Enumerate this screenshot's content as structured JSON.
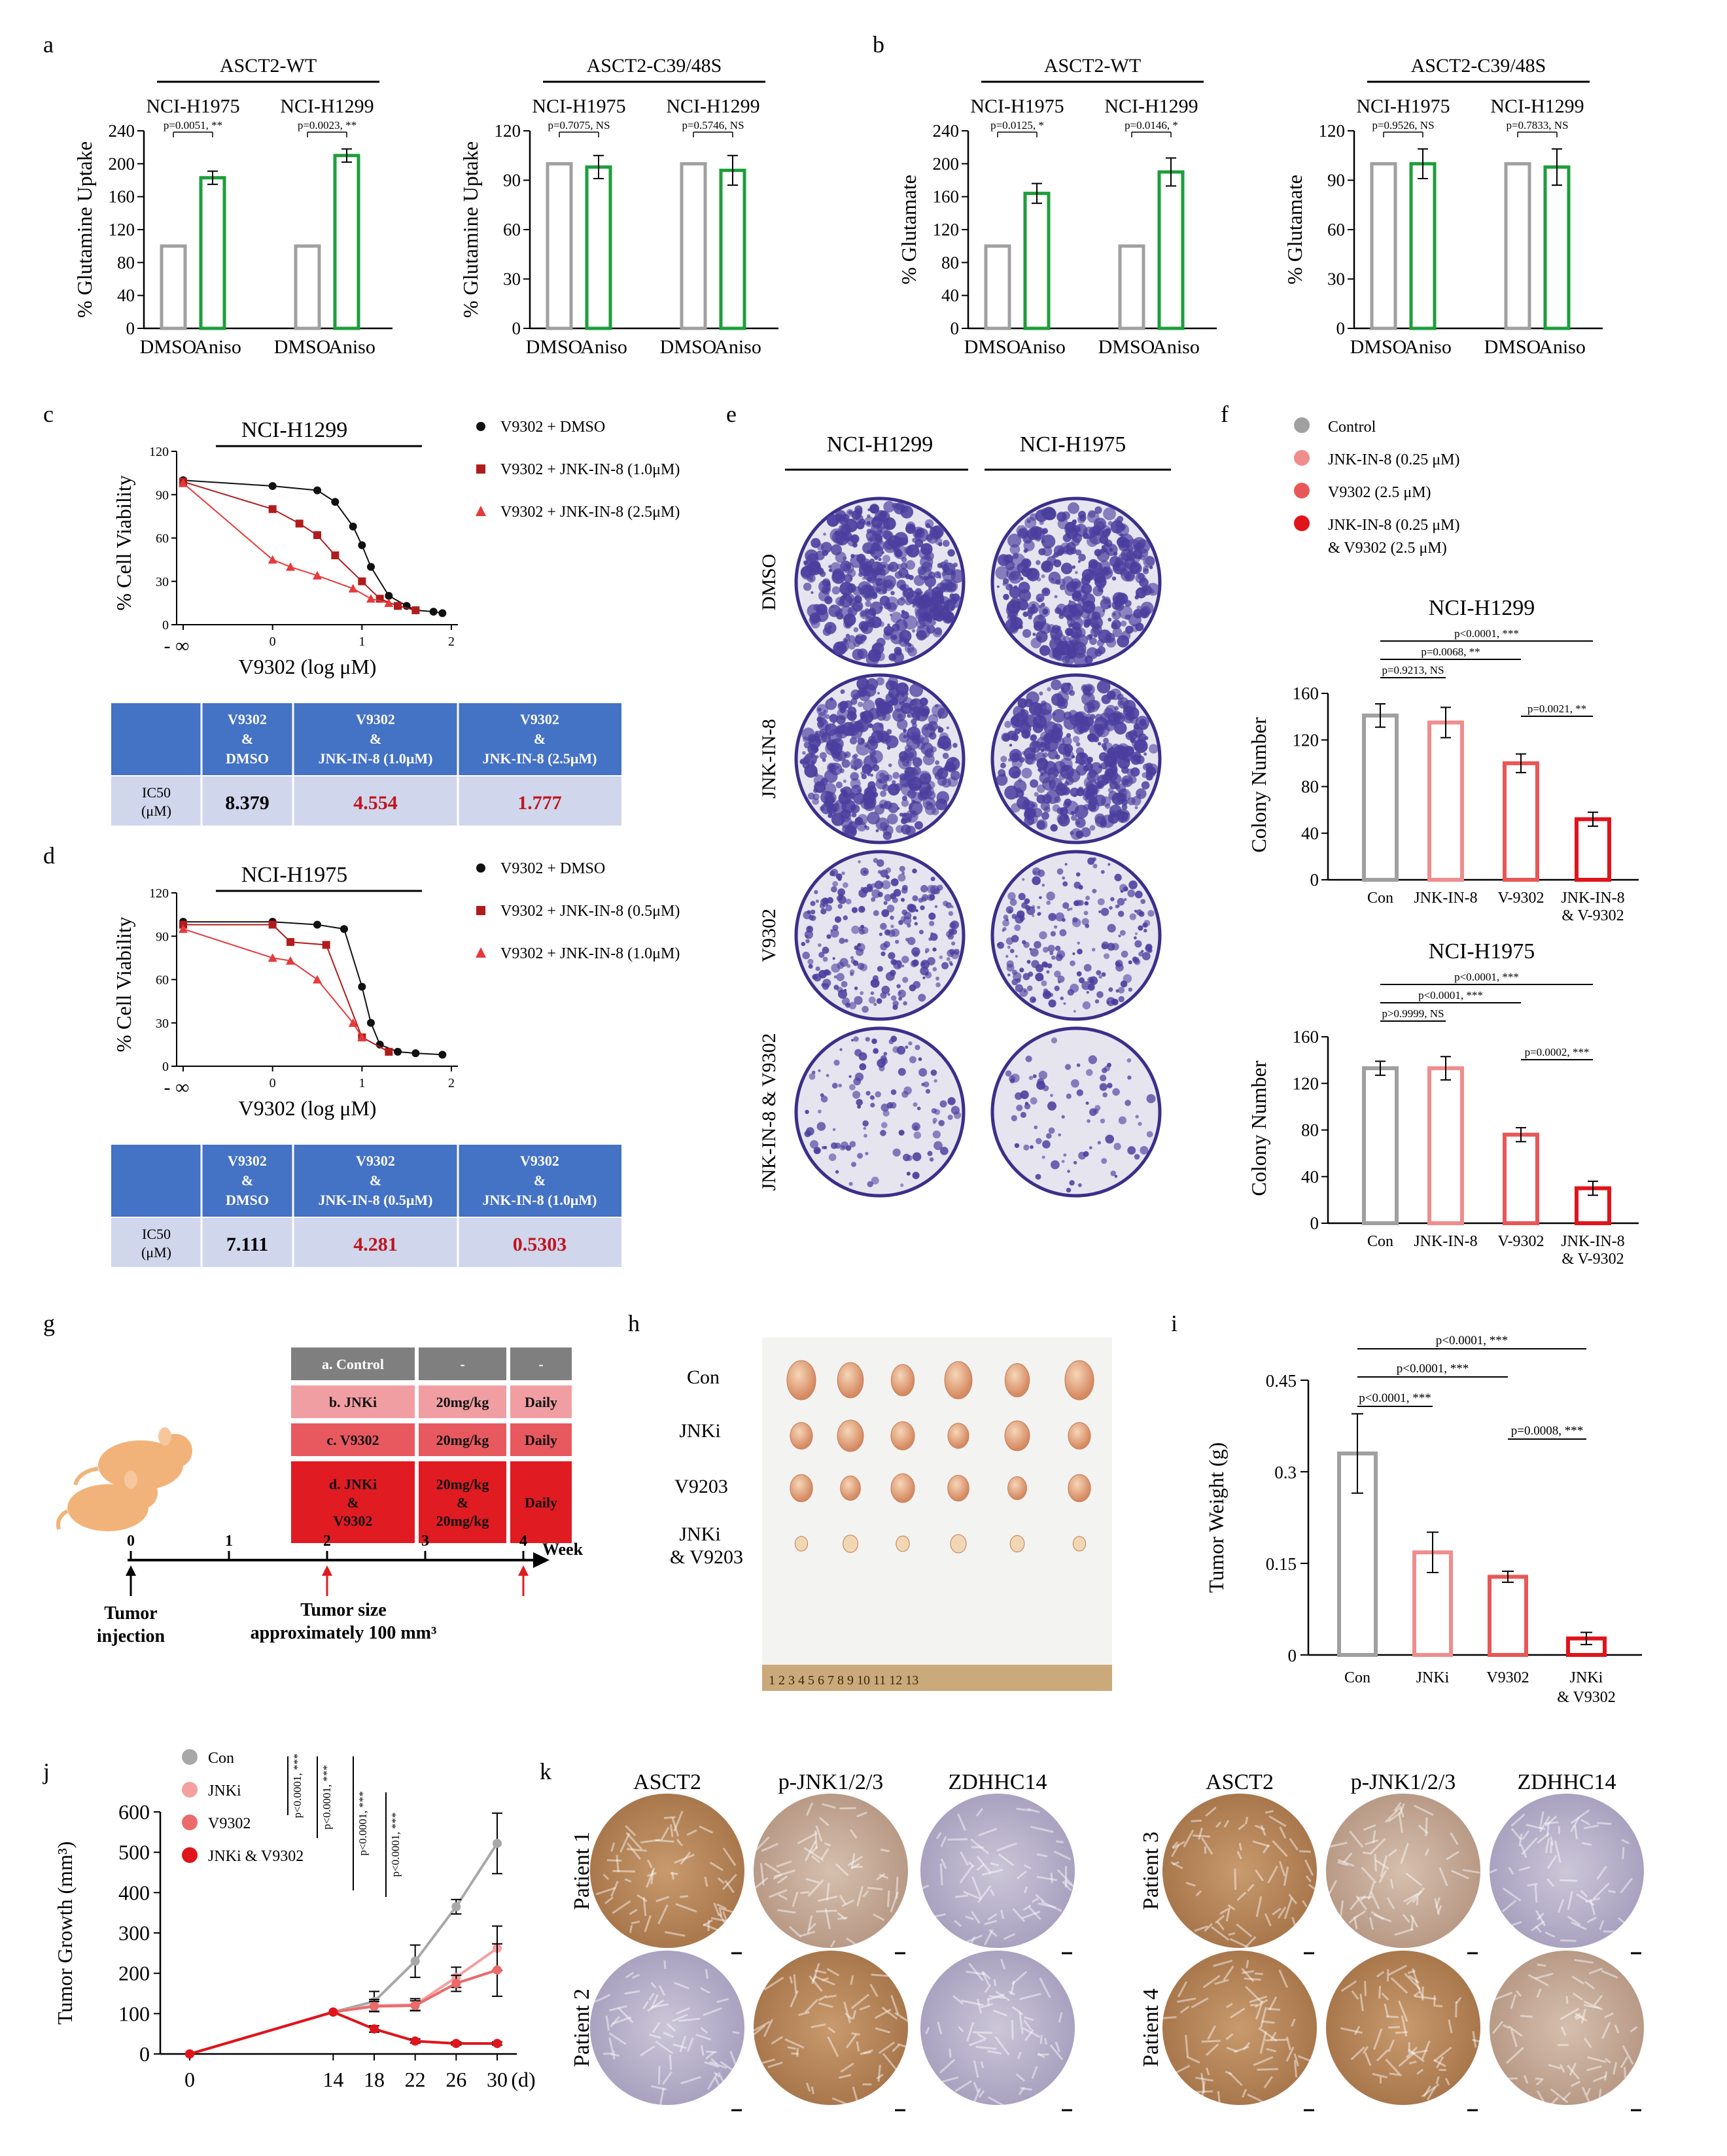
{
  "panels": {
    "a": {
      "letter": "a",
      "blocks": [
        {
          "group": "ASCT2-WT",
          "ylabel": "% Glutamine Uptake",
          "ylim": [
            0,
            240
          ],
          "ticks": [
            "0",
            "40",
            "80",
            "120",
            "160",
            "200",
            "240"
          ],
          "lines": [
            {
              "name": "NCI-H1975",
              "p": "p=0.0051, **",
              "values": [
                100,
                183
              ],
              "err": [
                0,
                8
              ]
            },
            {
              "name": "NCI-H1299",
              "p": "p=0.0023, **",
              "values": [
                100,
                210
              ],
              "err": [
                0,
                8
              ]
            }
          ],
          "xlabels": [
            "DMSO",
            "Aniso",
            "DMSO",
            "Aniso"
          ]
        },
        {
          "group": "ASCT2-C39/48S",
          "ylabel": "% Glutamine Uptake",
          "ylim": [
            0,
            120
          ],
          "ticks": [
            "0",
            "30",
            "60",
            "90",
            "120"
          ],
          "lines": [
            {
              "name": "NCI-H1975",
              "p": "p=0.7075, NS",
              "values": [
                100,
                98
              ],
              "err": [
                0,
                7
              ]
            },
            {
              "name": "NCI-H1299",
              "p": "p=0.5746, NS",
              "values": [
                100,
                96
              ],
              "err": [
                0,
                9
              ]
            }
          ],
          "xlabels": [
            "DMSO",
            "Aniso",
            "DMSO",
            "Aniso"
          ]
        }
      ]
    },
    "b": {
      "letter": "b",
      "blocks": [
        {
          "group": "ASCT2-WT",
          "ylabel": "% Glutamate",
          "ylim": [
            0,
            240
          ],
          "ticks": [
            "0",
            "40",
            "80",
            "120",
            "160",
            "200",
            "240"
          ],
          "lines": [
            {
              "name": "NCI-H1975",
              "p": "p=0.0125, *",
              "values": [
                100,
                164
              ],
              "err": [
                0,
                12
              ]
            },
            {
              "name": "NCI-H1299",
              "p": "p=0.0146, *",
              "values": [
                100,
                190
              ],
              "err": [
                0,
                17
              ]
            }
          ],
          "xlabels": [
            "DMSO",
            "Aniso",
            "DMSO",
            "Aniso"
          ]
        },
        {
          "group": "ASCT2-C39/48S",
          "ylabel": "% Glutamate",
          "ylim": [
            0,
            120
          ],
          "ticks": [
            "0",
            "30",
            "60",
            "90",
            "120"
          ],
          "lines": [
            {
              "name": "NCI-H1975",
              "p": "p=0.9526, NS",
              "values": [
                100,
                100
              ],
              "err": [
                0,
                9
              ]
            },
            {
              "name": "NCI-H1299",
              "p": "p=0.7833, NS",
              "values": [
                100,
                98
              ],
              "err": [
                0,
                11
              ]
            }
          ],
          "xlabels": [
            "DMSO",
            "Aniso",
            "DMSO",
            "Aniso"
          ]
        }
      ]
    },
    "c": {
      "letter": "c",
      "line": "NCI-H1299",
      "ylabel": "% Cell Viability",
      "xlabel": "V9302 (log   μM)",
      "yticks": [
        "0",
        "30",
        "60",
        "90",
        "120"
      ],
      "xticks": [
        "- ∞",
        "0",
        "1",
        "2"
      ],
      "legend": [
        "V9302 + DMSO",
        "V9302 + JNK-IN-8 (1.0μM)",
        "V9302 + JNK-IN-8 (2.5μM)"
      ],
      "table": {
        "headers": [
          "V9302\n&\nDMSO",
          "V9302\n&\nJNK-IN-8 (1.0μM)",
          "V9302\n&\nJNK-IN-8  (2.5μM)"
        ],
        "rowlabel": "IC50\n(μM)",
        "values": [
          "8.379",
          "4.554",
          "1.777"
        ]
      }
    },
    "d": {
      "letter": "d",
      "line": "NCI-H1975",
      "ylabel": "% Cell Viability",
      "xlabel": "V9302 (log   μM)",
      "yticks": [
        "0",
        "30",
        "60",
        "90",
        "120"
      ],
      "xticks": [
        "- ∞",
        "0",
        "1",
        "2"
      ],
      "legend": [
        "V9302 + DMSO",
        "V9302 + JNK-IN-8 (0.5μM)",
        "V9302 + JNK-IN-8 (1.0μM)"
      ],
      "table": {
        "headers": [
          "V9302\n&\nDMSO",
          "V9302\n&\nJNK-IN-8 (0.5μM)",
          "V9302\n&\nJNK-IN-8  (1.0μM)"
        ],
        "rowlabel": "IC50\n(μM)",
        "values": [
          "7.111",
          "4.281",
          "0.5303"
        ]
      }
    },
    "e": {
      "letter": "e",
      "columns": [
        "NCI-H1299",
        "NCI-H1975"
      ],
      "rows": [
        "DMSO",
        "JNK-IN-8",
        "V9302",
        "JNK-IN-8 & V9302"
      ],
      "density": [
        0.9,
        0.85,
        0.5,
        0.15,
        0.85,
        0.85,
        0.4,
        0.06
      ]
    },
    "f": {
      "letter": "f",
      "legend": [
        "Control",
        "JNK-IN-8 (0.25 μM)",
        "V9302 (2.5 μM)",
        "JNK-IN-8 (0.25 μM)",
        "&  V9302 (2.5 μM)"
      ],
      "ylabel": "Colony Number",
      "xlabels": [
        "Con",
        "JNK-IN-8",
        "V-9302",
        "JNK-IN-8",
        "& V-9302"
      ],
      "charts": [
        {
          "title": "NCI-H1299",
          "values": [
            141,
            135,
            100,
            52
          ],
          "err": [
            10,
            13,
            8,
            6
          ],
          "ticks": [
            "0",
            "40",
            "80",
            "120",
            "160"
          ],
          "brackets": [
            "p<0.0001, ***",
            "p=0.0068, **",
            "p=0.9213, NS",
            "p=0.0021, **"
          ]
        },
        {
          "title": "NCI-H1975",
          "values": [
            133,
            133,
            76,
            30
          ],
          "err": [
            6,
            10,
            6,
            6
          ],
          "ticks": [
            "0",
            "40",
            "80",
            "120",
            "160"
          ],
          "brackets": [
            "p<0.0001, ***",
            "p<0.0001, ***",
            "p>0.9999, NS",
            "p=0.0002, ***"
          ]
        }
      ]
    },
    "g": {
      "letter": "g",
      "table": [
        [
          "a. Control",
          "-",
          "-"
        ],
        [
          "b. JNKi",
          "20mg/kg",
          "Daily"
        ],
        [
          "c. V9302",
          "20mg/kg",
          "Daily"
        ],
        [
          "d. JNKi",
          "20mg/kg",
          "Daily"
        ],
        [
          "&",
          "&",
          ""
        ],
        [
          "V9302",
          "20mg/kg",
          ""
        ]
      ],
      "weeks": [
        "0",
        "1",
        "2",
        "3",
        "4"
      ],
      "week_label": "Week",
      "left_note": [
        "Tumor",
        "injection"
      ],
      "mid_note": [
        "Tumor size",
        "approximately 100 mm³"
      ]
    },
    "h": {
      "letter": "h",
      "rows": [
        "Con",
        "JNKi",
        "V9203",
        "JNKi",
        "& V9203"
      ],
      "ruler": "1  2  3  4  5  6  7  8  9  10  11  12  13"
    },
    "i": {
      "letter": "i",
      "ylabel": "Tumor Weight (g)",
      "ticks": [
        "0",
        "0.15",
        "0.3",
        "0.45"
      ],
      "xlabels": [
        "Con",
        "JNKi",
        "V9302",
        "JNKi",
        "& V9302"
      ],
      "values": [
        0.33,
        0.168,
        0.128,
        0.027
      ],
      "err": [
        0.065,
        0.033,
        0.009,
        0.01
      ],
      "brackets": [
        "p<0.0001, ***",
        "p<0.0001, ***",
        "p<0.0001, ***",
        "p=0.0008, ***"
      ]
    },
    "j": {
      "letter": "j",
      "ylabel": "Tumor Growth (mm³)",
      "xunit": "(d)",
      "xticks": [
        "0",
        "14",
        "18",
        "22",
        "26",
        "30"
      ],
      "yticks": [
        "0",
        "100",
        "200",
        "300",
        "400",
        "500",
        "600"
      ],
      "legend": [
        "Con",
        "JNKi",
        "V9302",
        "JNKi & V9302"
      ],
      "pvals": [
        "p<0.0001, ***",
        "p<0.0001, ***",
        "p<0.0001, ***",
        "p<0.0001, ***"
      ]
    },
    "k": {
      "letter": "k",
      "columns": [
        "ASCT2",
        "p-JNK1/2/3",
        "ZDHHC14",
        "ASCT2",
        "p-JNK1/2/3",
        "ZDHHC14"
      ],
      "patients": [
        "Patient 1",
        "Patient 2",
        "Patient 3",
        "Patient 4"
      ]
    }
  },
  "chart_data": [
    {
      "type": "bar",
      "panel": "a-1",
      "title": "ASCT2-WT",
      "ylabel": "% Glutamine Uptake",
      "ylim": [
        0,
        240
      ],
      "categories": [
        "NCI-H1975 DMSO",
        "NCI-H1975 Aniso",
        "NCI-H1299 DMSO",
        "NCI-H1299 Aniso"
      ],
      "values": [
        100,
        183,
        100,
        210
      ]
    },
    {
      "type": "bar",
      "panel": "a-2",
      "title": "ASCT2-C39/48S",
      "ylabel": "% Glutamine Uptake",
      "ylim": [
        0,
        120
      ],
      "categories": [
        "NCI-H1975 DMSO",
        "NCI-H1975 Aniso",
        "NCI-H1299 DMSO",
        "NCI-H1299 Aniso"
      ],
      "values": [
        100,
        98,
        100,
        96
      ]
    },
    {
      "type": "bar",
      "panel": "b-1",
      "title": "ASCT2-WT",
      "ylabel": "% Glutamate",
      "ylim": [
        0,
        240
      ],
      "categories": [
        "NCI-H1975 DMSO",
        "NCI-H1975 Aniso",
        "NCI-H1299 DMSO",
        "NCI-H1299 Aniso"
      ],
      "values": [
        100,
        164,
        100,
        190
      ]
    },
    {
      "type": "bar",
      "panel": "b-2",
      "title": "ASCT2-C39/48S",
      "ylabel": "% Glutamate",
      "ylim": [
        0,
        120
      ],
      "categories": [
        "NCI-H1975 DMSO",
        "NCI-H1975 Aniso",
        "NCI-H1299 DMSO",
        "NCI-H1299 Aniso"
      ],
      "values": [
        100,
        100,
        100,
        98
      ]
    },
    {
      "type": "scatter",
      "panel": "c",
      "title": "NCI-H1299",
      "xlabel": "V9302 (log μM)",
      "ylabel": "% Cell Viability",
      "xlim": [
        -1,
        2
      ],
      "ylim": [
        0,
        120
      ],
      "series": [
        {
          "name": "V9302 + DMSO",
          "x": [
            -1,
            0,
            0.5,
            0.7,
            0.9,
            1.0,
            1.1,
            1.3,
            1.5,
            1.6,
            1.8,
            1.9
          ],
          "y": [
            100,
            96,
            93,
            85,
            68,
            55,
            40,
            20,
            13,
            10,
            9,
            8
          ]
        },
        {
          "name": "V9302 + JNK-IN-8 (1.0μM)",
          "x": [
            -1,
            0,
            0.3,
            0.5,
            0.7,
            1.0,
            1.2,
            1.4,
            1.6
          ],
          "y": [
            99,
            80,
            70,
            62,
            48,
            30,
            18,
            13,
            10
          ]
        },
        {
          "name": "V9302 + JNK-IN-8 (2.5μM)",
          "x": [
            -1,
            0,
            0.2,
            0.5,
            0.9,
            1.1,
            1.3
          ],
          "y": [
            98,
            45,
            40,
            34,
            25,
            18,
            15
          ]
        }
      ]
    },
    {
      "type": "scatter",
      "panel": "d",
      "title": "NCI-H1975",
      "xlabel": "V9302 (log μM)",
      "ylabel": "% Cell Viability",
      "xlim": [
        -1,
        2
      ],
      "ylim": [
        0,
        120
      ],
      "series": [
        {
          "name": "V9302 + DMSO",
          "x": [
            -1,
            0,
            0.5,
            0.8,
            1.0,
            1.1,
            1.2,
            1.4,
            1.6,
            1.9
          ],
          "y": [
            100,
            100,
            98,
            95,
            55,
            30,
            15,
            10,
            9,
            8
          ]
        },
        {
          "name": "V9302 + JNK-IN-8 (0.5μM)",
          "x": [
            -1,
            0,
            0.2,
            0.6,
            1.0,
            1.3
          ],
          "y": [
            98,
            98,
            86,
            84,
            20,
            10
          ]
        },
        {
          "name": "V9302 + JNK-IN-8 (1.0μM)",
          "x": [
            -1,
            0,
            0.2,
            0.5,
            0.9,
            1.0
          ],
          "y": [
            95,
            75,
            73,
            60,
            30,
            20
          ]
        }
      ]
    },
    {
      "type": "bar",
      "panel": "f-1",
      "title": "NCI-H1299",
      "ylabel": "Colony Number",
      "ylim": [
        0,
        160
      ],
      "categories": [
        "Con",
        "JNK-IN-8",
        "V-9302",
        "JNK-IN-8 & V-9302"
      ],
      "values": [
        141,
        135,
        100,
        52
      ]
    },
    {
      "type": "bar",
      "panel": "f-2",
      "title": "NCI-H1975",
      "ylabel": "Colony Number",
      "ylim": [
        0,
        160
      ],
      "categories": [
        "Con",
        "JNK-IN-8",
        "V-9302",
        "JNK-IN-8 & V-9302"
      ],
      "values": [
        133,
        133,
        76,
        30
      ]
    },
    {
      "type": "bar",
      "panel": "i",
      "ylabel": "Tumor Weight (g)",
      "ylim": [
        0,
        0.45
      ],
      "categories": [
        "Con",
        "JNKi",
        "V9302",
        "JNKi & V9302"
      ],
      "values": [
        0.33,
        0.168,
        0.128,
        0.027
      ]
    },
    {
      "type": "line",
      "panel": "j",
      "ylabel": "Tumor Growth (mm³)",
      "xlabel": "(d)",
      "ylim": [
        0,
        600
      ],
      "x": [
        0,
        14,
        18,
        22,
        26,
        30
      ],
      "series": [
        {
          "name": "Con",
          "values": [
            0,
            104,
            130,
            230,
            365,
            522
          ]
        },
        {
          "name": "JNKi",
          "values": [
            0,
            104,
            120,
            122,
            190,
            262
          ]
        },
        {
          "name": "V9302",
          "values": [
            0,
            104,
            118,
            120,
            175,
            208
          ]
        },
        {
          "name": "JNKi & V9302",
          "values": [
            0,
            104,
            62,
            32,
            26,
            26
          ]
        }
      ]
    }
  ]
}
